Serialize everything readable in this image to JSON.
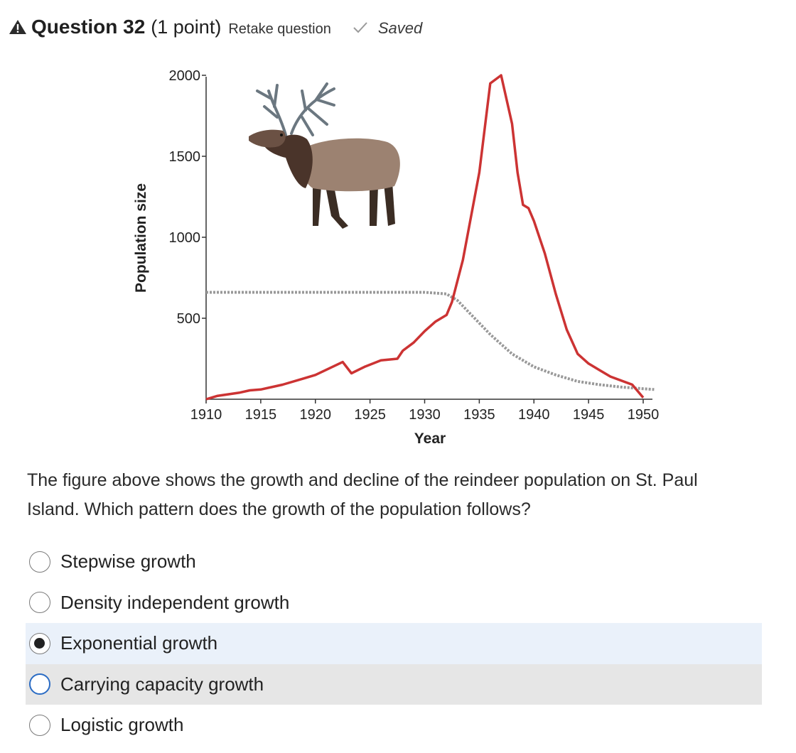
{
  "header": {
    "title": "Question 32",
    "points": "(1 point)",
    "retake_label": "Retake question",
    "status": "Saved"
  },
  "chart_data": {
    "type": "line",
    "ylabel": "Population size",
    "xlabel": "Year",
    "xlim": [
      1910,
      1951
    ],
    "ylim": [
      0,
      2000
    ],
    "x_ticks": [
      "1910",
      "1915",
      "1920",
      "1925",
      "1930",
      "1935",
      "1940",
      "1945",
      "1950"
    ],
    "y_ticks": [
      "500",
      "1000",
      "1500",
      "2000"
    ],
    "series": [
      {
        "style": "solid",
        "color": "#cc3333",
        "x": [
          1910,
          1911,
          1913,
          1914,
          1915,
          1917,
          1919,
          1920,
          1922.5,
          1923.3,
          1924.5,
          1926,
          1927.5,
          1928,
          1929,
          1930,
          1931,
          1932,
          1932.5,
          1933.5,
          1935,
          1936,
          1937,
          1938,
          1938.5,
          1939,
          1939.5,
          1940,
          1941,
          1942,
          1943,
          1944,
          1945,
          1946,
          1947,
          1949,
          1950
        ],
        "y": [
          0,
          20,
          40,
          55,
          60,
          90,
          130,
          150,
          230,
          160,
          200,
          240,
          250,
          300,
          350,
          420,
          480,
          520,
          600,
          860,
          1400,
          1950,
          2000,
          1700,
          1400,
          1200,
          1180,
          1100,
          900,
          650,
          430,
          280,
          220,
          180,
          140,
          90,
          10
        ]
      },
      {
        "style": "dashed",
        "color": "#999999",
        "x": [
          1910,
          1915,
          1920,
          1925,
          1930,
          1932,
          1933,
          1934,
          1935,
          1936,
          1937,
          1938,
          1940,
          1942,
          1944,
          1946,
          1948,
          1950,
          1951
        ],
        "y": [
          660,
          660,
          660,
          660,
          660,
          650,
          610,
          540,
          470,
          400,
          340,
          280,
          200,
          150,
          110,
          90,
          75,
          65,
          60
        ]
      }
    ]
  },
  "question": {
    "text": "The figure above shows the growth and decline of the reindeer population on St. Paul Island. Which pattern does the growth of the population follows?"
  },
  "options": [
    {
      "label": "Stepwise growth"
    },
    {
      "label": "Density independent growth"
    },
    {
      "label": "Exponential growth"
    },
    {
      "label": "Carrying capacity growth"
    },
    {
      "label": "Logistic growth"
    }
  ]
}
